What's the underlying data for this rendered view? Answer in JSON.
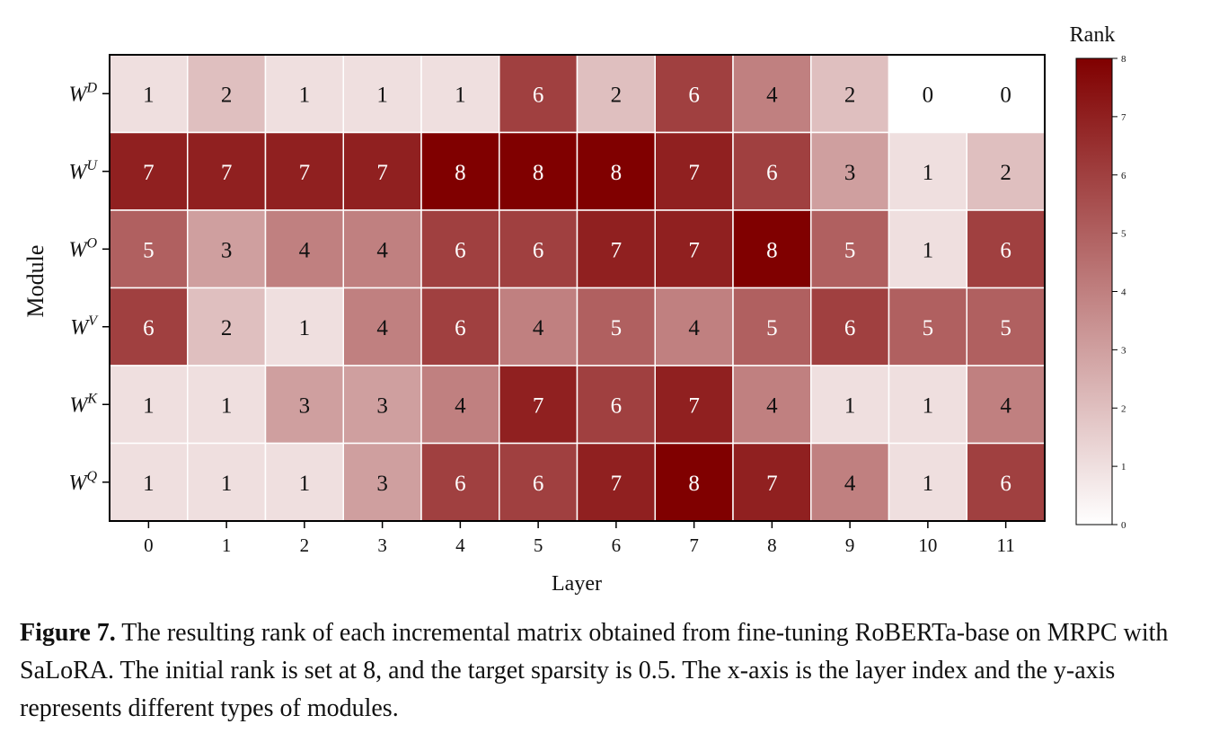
{
  "chart_data": {
    "type": "heatmap",
    "title": "",
    "xlabel": "Layer",
    "ylabel": "Module",
    "x_categories": [
      "0",
      "1",
      "2",
      "3",
      "4",
      "5",
      "6",
      "7",
      "8",
      "9",
      "10",
      "11"
    ],
    "y_categories": [
      {
        "base": "W",
        "sup": "D"
      },
      {
        "base": "W",
        "sup": "U"
      },
      {
        "base": "W",
        "sup": "O"
      },
      {
        "base": "W",
        "sup": "V"
      },
      {
        "base": "W",
        "sup": "K"
      },
      {
        "base": "W",
        "sup": "Q"
      }
    ],
    "values": [
      [
        1,
        2,
        1,
        1,
        1,
        6,
        2,
        6,
        4,
        2,
        0,
        0
      ],
      [
        7,
        7,
        7,
        7,
        8,
        8,
        8,
        7,
        6,
        3,
        1,
        2
      ],
      [
        5,
        3,
        4,
        4,
        6,
        6,
        7,
        7,
        8,
        5,
        1,
        6
      ],
      [
        6,
        2,
        1,
        4,
        6,
        4,
        5,
        4,
        5,
        6,
        5,
        5
      ],
      [
        1,
        1,
        3,
        3,
        4,
        7,
        6,
        7,
        4,
        1,
        1,
        4
      ],
      [
        1,
        1,
        1,
        3,
        6,
        6,
        7,
        8,
        7,
        4,
        1,
        6
      ]
    ],
    "colorbar": {
      "label": "Rank",
      "min": 0,
      "max": 8,
      "ticks": [
        "0",
        "1",
        "2",
        "3",
        "4",
        "5",
        "6",
        "7",
        "8"
      ],
      "color_low": "#ffffff",
      "color_high": "#800000"
    }
  },
  "caption": {
    "label": "Figure 7.",
    "text": " The resulting rank of each incremental matrix obtained from fine-tuning RoBERTa-base on MRPC with SaLoRA. The initial rank is set at 8, and the target sparsity is 0.5. The x-axis is the layer index and the y-axis represents different types of modules."
  }
}
